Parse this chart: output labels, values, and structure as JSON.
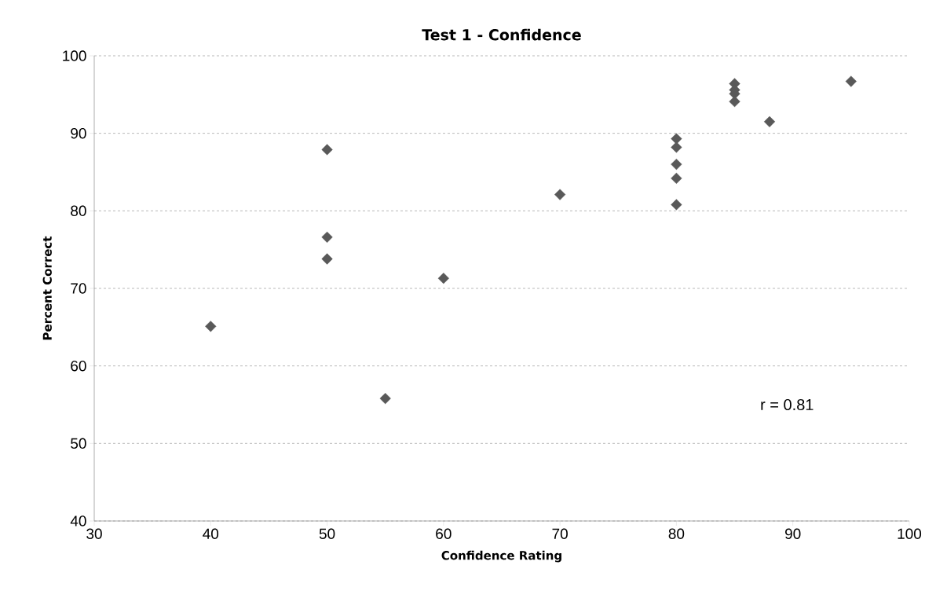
{
  "chart_data": {
    "type": "scatter",
    "title": "Test 1 - Confidence",
    "xlabel": "Confidence Rating",
    "ylabel": "Percent Correct",
    "x": [
      40,
      50,
      50,
      50,
      55,
      60,
      70,
      80,
      80,
      80,
      80,
      80,
      85,
      85,
      85,
      85,
      88,
      95
    ],
    "values": [
      65.1,
      87.9,
      76.6,
      73.8,
      55.8,
      71.3,
      82.1,
      89.3,
      88.2,
      86.0,
      84.2,
      80.8,
      96.4,
      95.6,
      95.1,
      94.1,
      91.5,
      96.7
    ],
    "color": "#595959",
    "marker": "diamond",
    "xlim": [
      30,
      100
    ],
    "xticks": [
      30,
      40,
      50,
      60,
      70,
      80,
      90,
      100
    ],
    "ylim": [
      40,
      100
    ],
    "yticks": [
      40,
      50,
      60,
      70,
      80,
      90,
      100
    ],
    "grid": "y",
    "annotations": [
      "r = 0.81"
    ]
  }
}
